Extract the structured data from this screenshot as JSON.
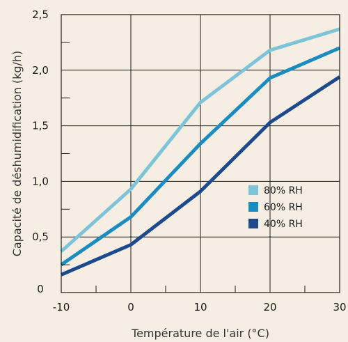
{
  "chart_data": {
    "type": "line",
    "xlabel": "Température de l'air (°C)",
    "ylabel": "Capacité de déshumidification (kg/h)",
    "xlim": [
      -10,
      30
    ],
    "ylim": [
      0,
      2.5
    ],
    "x_ticks": [
      -10,
      0,
      10,
      20,
      30
    ],
    "x_tick_labels": [
      "-10",
      "0",
      "10",
      "20",
      "30"
    ],
    "y_ticks": [
      0,
      0.5,
      1.0,
      1.5,
      2.0,
      2.5
    ],
    "y_tick_labels": [
      "0",
      "0,5",
      "1,0",
      "1,5",
      "2,0",
      "2,5"
    ],
    "grid": true,
    "legend_position": "right-middle",
    "series": [
      {
        "name": "80% RH",
        "color": "#7ec4d9",
        "x": [
          -10,
          0,
          10,
          20,
          30
        ],
        "y": [
          0.37,
          0.93,
          1.71,
          2.18,
          2.37
        ]
      },
      {
        "name": "60% RH",
        "color": "#1b8cbf",
        "x": [
          -10,
          0,
          10,
          20,
          30
        ],
        "y": [
          0.25,
          0.68,
          1.34,
          1.93,
          2.2
        ]
      },
      {
        "name": "40% RH",
        "color": "#1d4a8c",
        "x": [
          -10,
          0,
          10,
          20,
          30
        ],
        "y": [
          0.16,
          0.43,
          0.91,
          1.53,
          1.94
        ]
      }
    ]
  }
}
